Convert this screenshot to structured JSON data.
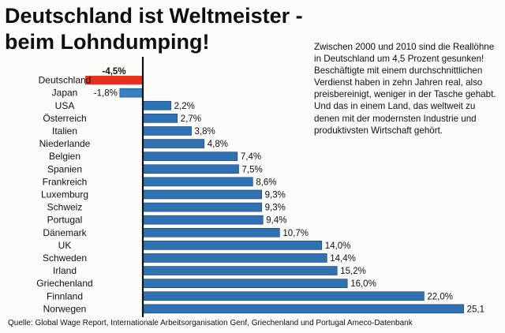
{
  "headline": {
    "line1": "Deutschland ist Weltmeister -",
    "line2": "beim Lohndumping!"
  },
  "note": "Zwischen 2000 und 2010 sind die Reallöhne in Deutschland um 4,5 Prozent gesunken! Beschäftigte mit einem durchschnittlichen Verdienst haben in zehn Jahren real, also preisbereinigt, weniger in der Tasche gehabt. Und das in einem Land, das weltweit zu denen mit der modernsten Industrie und produktivsten Wirtschaft gehört.",
  "source": "Quelle: Global Wage Report, Internationale Arbeitsorganisation Genf, Griechenland und Portugal  Ameco-Datenbank",
  "colors": {
    "positive": "#2e72b4",
    "highlight": "#e8311d",
    "japan": "#3b7fc3",
    "axis": "#111111"
  },
  "chart_data": {
    "type": "bar",
    "orientation": "horizontal",
    "categories": [
      "Deutschland",
      "Japan",
      "USA",
      "Österreich",
      "Italien",
      "Niederlande",
      "Belgien",
      "Spanien",
      "Frankreich",
      "Luxemburg",
      "Schweiz",
      "Portugal",
      "Dänemark",
      "UK",
      "Schweden",
      "Irland",
      "Griechenland",
      "Finnland",
      "Norwegen"
    ],
    "values": [
      -4.5,
      -1.8,
      2.2,
      2.7,
      3.8,
      4.8,
      7.4,
      7.5,
      8.6,
      9.3,
      9.3,
      9.4,
      10.7,
      14.0,
      14.4,
      15.2,
      16.0,
      22.0,
      25.1
    ],
    "value_labels": [
      "-4,5%",
      "-1,8%",
      "2,2%",
      "2,7%",
      "3,8%",
      "4,8%",
      "7,4%",
      "7,5%",
      "8,6%",
      "9,3%",
      "9,3%",
      "9,4%",
      "10,7%",
      "14,0%",
      "14,4%",
      "15,2%",
      "16,0%",
      "22,0%",
      "25,1"
    ],
    "highlight_category": "Deutschland",
    "grid": false
  }
}
